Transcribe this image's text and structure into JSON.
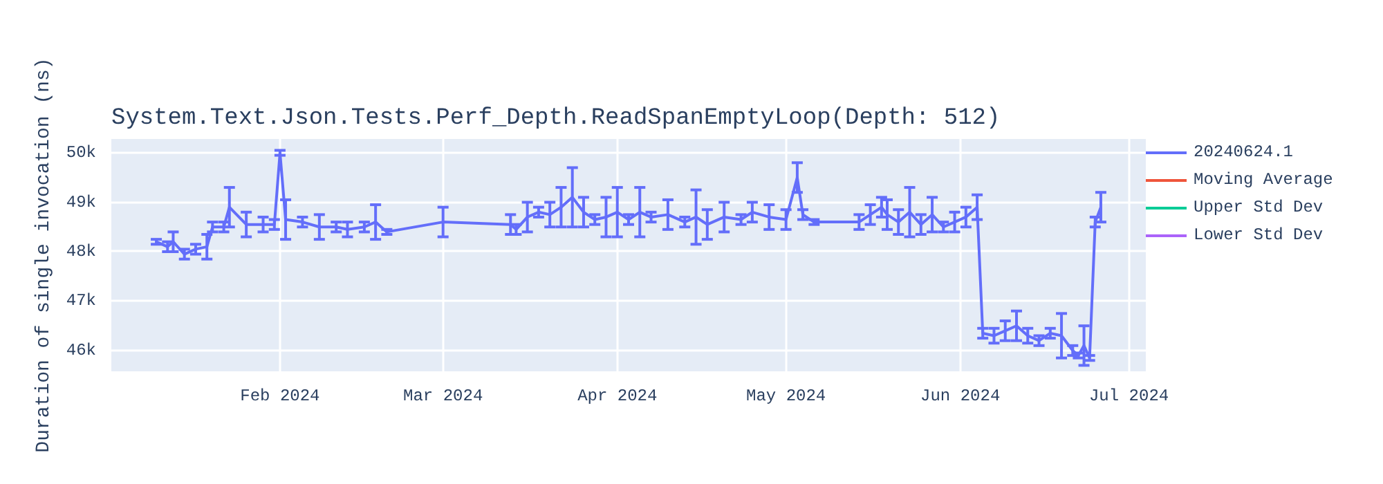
{
  "chart_data": {
    "type": "line",
    "title": "System.Text.Json.Tests.Perf_Depth.ReadSpanEmptyLoop(Depth: 512)",
    "ylabel": "Duration of single invocation (ns)",
    "xlim": [
      "2024-01-02",
      "2024-07-04"
    ],
    "ylim": [
      45580,
      50280
    ],
    "xticks": [
      {
        "value": "2024-02-01",
        "label": "Feb 2024"
      },
      {
        "value": "2024-03-01",
        "label": "Mar 2024"
      },
      {
        "value": "2024-04-01",
        "label": "Apr 2024"
      },
      {
        "value": "2024-05-01",
        "label": "May 2024"
      },
      {
        "value": "2024-06-01",
        "label": "Jun 2024"
      },
      {
        "value": "2024-07-01",
        "label": "Jul 2024"
      }
    ],
    "yticks": [
      {
        "value": 46000,
        "label": "46k"
      },
      {
        "value": 47000,
        "label": "47k"
      },
      {
        "value": 48000,
        "label": "48k"
      },
      {
        "value": 49000,
        "label": "49k"
      },
      {
        "value": 50000,
        "label": "50k"
      }
    ],
    "grid": true,
    "legend": "right",
    "marker": "none",
    "line_style": "solid",
    "x": [
      "2024-01-10",
      "2024-01-12",
      "2024-01-13",
      "2024-01-15",
      "2024-01-17",
      "2024-01-19",
      "2024-01-20",
      "2024-01-22",
      "2024-01-23",
      "2024-01-26",
      "2024-01-29",
      "2024-01-31",
      "2024-02-01",
      "2024-02-02",
      "2024-02-05",
      "2024-02-08",
      "2024-02-11",
      "2024-02-13",
      "2024-02-16",
      "2024-02-18",
      "2024-02-20",
      "2024-03-01",
      "2024-03-13",
      "2024-03-14",
      "2024-03-16",
      "2024-03-18",
      "2024-03-20",
      "2024-03-22",
      "2024-03-24",
      "2024-03-26",
      "2024-03-28",
      "2024-03-30",
      "2024-04-01",
      "2024-04-03",
      "2024-04-05",
      "2024-04-07",
      "2024-04-10",
      "2024-04-13",
      "2024-04-15",
      "2024-04-17",
      "2024-04-20",
      "2024-04-23",
      "2024-04-25",
      "2024-04-28",
      "2024-05-01",
      "2024-05-03",
      "2024-05-04",
      "2024-05-06",
      "2024-05-14",
      "2024-05-16",
      "2024-05-18",
      "2024-05-19",
      "2024-05-21",
      "2024-05-23",
      "2024-05-25",
      "2024-05-27",
      "2024-05-29",
      "2024-05-31",
      "2024-06-02",
      "2024-06-04",
      "2024-06-05",
      "2024-06-07",
      "2024-06-09",
      "2024-06-11",
      "2024-06-13",
      "2024-06-15",
      "2024-06-17",
      "2024-06-19",
      "2024-06-21",
      "2024-06-22",
      "2024-06-23",
      "2024-06-24",
      "2024-06-25",
      "2024-06-26"
    ],
    "series": [
      {
        "name": "20240624.1",
        "color": "#636efa",
        "values": [
          48200,
          48100,
          48200,
          47950,
          48050,
          48100,
          48500,
          48500,
          48900,
          48550,
          48550,
          48550,
          50000,
          48650,
          48600,
          48500,
          48500,
          48450,
          48500,
          48600,
          48400,
          48600,
          48550,
          48450,
          48700,
          48800,
          48750,
          48900,
          49100,
          48800,
          48650,
          48700,
          48800,
          48650,
          48800,
          48700,
          48750,
          48600,
          48700,
          48550,
          48700,
          48650,
          48800,
          48700,
          48650,
          49500,
          48750,
          48600,
          48600,
          48750,
          48900,
          48750,
          48600,
          48800,
          48550,
          48750,
          48500,
          48600,
          48700,
          48900,
          46350,
          46300,
          46400,
          46500,
          46300,
          46200,
          46350,
          46300,
          46000,
          45900,
          46100,
          45850,
          48600,
          48900
        ],
        "errors": [
          50,
          100,
          200,
          100,
          100,
          250,
          100,
          100,
          400,
          250,
          150,
          100,
          50,
          400,
          100,
          250,
          100,
          150,
          100,
          350,
          50,
          300,
          200,
          100,
          300,
          100,
          250,
          400,
          600,
          300,
          100,
          400,
          500,
          100,
          500,
          100,
          300,
          100,
          550,
          300,
          300,
          100,
          200,
          250,
          200,
          300,
          100,
          50,
          150,
          200,
          200,
          300,
          250,
          500,
          200,
          350,
          100,
          200,
          200,
          250,
          100,
          150,
          200,
          300,
          150,
          100,
          100,
          450,
          100,
          50,
          400,
          50,
          100,
          300
        ]
      },
      {
        "name": "Moving Average",
        "color": "#ef553b",
        "values": [
          null,
          null,
          null,
          null,
          null,
          null,
          null,
          null,
          null,
          null,
          null,
          null,
          null,
          null,
          null,
          null,
          null,
          null,
          null,
          null,
          null,
          null,
          null,
          null,
          null,
          null,
          null,
          null,
          null,
          null,
          null,
          null,
          null,
          null,
          null,
          null,
          null,
          null,
          null,
          null,
          null,
          null,
          null,
          null,
          null,
          null,
          null,
          null,
          null,
          null,
          null,
          null,
          null,
          null,
          null,
          null,
          null,
          null,
          null,
          null,
          null,
          null,
          null,
          null,
          null,
          null,
          null,
          null,
          null,
          null,
          null,
          null,
          null,
          null
        ]
      },
      {
        "name": "Upper Std Dev",
        "color": "#00cc96",
        "values": [
          null,
          null,
          null,
          null,
          null,
          null,
          null,
          null,
          null,
          null,
          null,
          null,
          null,
          null,
          null,
          null,
          null,
          null,
          null,
          null,
          null,
          null,
          null,
          null,
          null,
          null,
          null,
          null,
          null,
          null,
          null,
          null,
          null,
          null,
          null,
          null,
          null,
          null,
          null,
          null,
          null,
          null,
          null,
          null,
          null,
          null,
          null,
          null,
          null,
          null,
          null,
          null,
          null,
          null,
          null,
          null,
          null,
          null,
          null,
          null,
          null,
          null,
          null,
          null,
          null,
          null,
          null,
          null,
          null,
          null,
          null,
          null,
          null,
          null
        ]
      },
      {
        "name": "Lower Std Dev",
        "color": "#ab63fa",
        "values": [
          null,
          null,
          null,
          null,
          null,
          null,
          null,
          null,
          null,
          null,
          null,
          null,
          null,
          null,
          null,
          null,
          null,
          null,
          null,
          null,
          null,
          null,
          null,
          null,
          null,
          null,
          null,
          null,
          null,
          null,
          null,
          null,
          null,
          null,
          null,
          null,
          null,
          null,
          null,
          null,
          null,
          null,
          null,
          null,
          null,
          null,
          null,
          null,
          null,
          null,
          null,
          null,
          null,
          null,
          null,
          null,
          null,
          null,
          null,
          null,
          null,
          null,
          null,
          null,
          null,
          null,
          null,
          null,
          null,
          null,
          null,
          null,
          null,
          null
        ]
      }
    ]
  }
}
